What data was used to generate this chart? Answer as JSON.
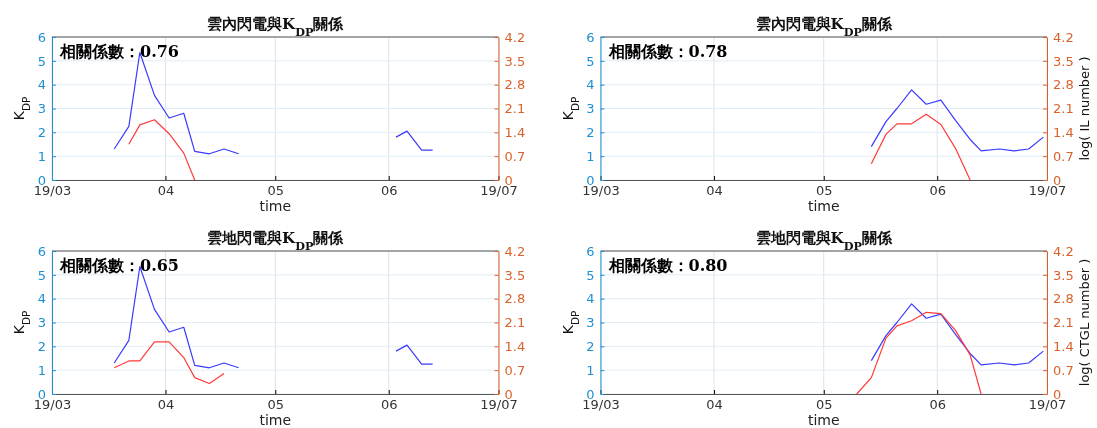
{
  "chart_data": [
    {
      "type": "line",
      "title": "雲內閃電與K$_{DP}$關係",
      "xlabel": "time",
      "ylabel": "K$_{DP}$",
      "annotations": [
        "相關係數：0.76"
      ],
      "grid": true,
      "xlim": [
        "--03-01",
        "--07-01"
      ],
      "xticks": [
        {
          "value": "--03-01",
          "label": "19/03"
        },
        {
          "value": "--04-01",
          "label": "04"
        },
        {
          "value": "--05-01",
          "label": "05"
        },
        {
          "value": "--06-01",
          "label": "06"
        },
        {
          "value": "--07-01",
          "label": "19/07"
        }
      ],
      "ylim": [
        0,
        6
      ],
      "yticks": [
        0,
        1,
        2,
        3,
        4,
        5,
        6
      ],
      "y2lim": [
        0,
        4.2
      ],
      "y2ticks": [
        0,
        0.7,
        1.4,
        2.1,
        2.8,
        3.5,
        4.2
      ],
      "series": [
        {
          "color": "#3a3aff",
          "x": [
            "--03-18",
            "--03-22",
            "--03-25",
            "--03-29",
            "--04-02",
            "--04-06",
            "--04-09",
            "--04-13",
            "--04-17",
            "--04-21",
            "--05-15",
            "--06-03",
            "--06-06",
            "--06-10",
            "--06-13"
          ],
          "values": [
            1.3,
            2.25,
            5.35,
            3.55,
            2.6,
            2.8,
            1.2,
            1.1,
            1.3,
            1.1,
            null,
            1.8,
            2.05,
            1.25,
            1.25
          ]
        },
        {
          "color": "#ff3a3a",
          "axis": "y2",
          "x": [
            "--03-22",
            "--03-25",
            "--03-29",
            "--04-02",
            "--04-06",
            "--04-09"
          ],
          "values": [
            1.05,
            1.62,
            1.77,
            1.36,
            0.79,
            0
          ]
        }
      ]
    },
    {
      "type": "line",
      "title": "雲內閃電與K$_{DP}$關係",
      "xlabel": "time",
      "ylabel": "K$_{DP}$",
      "y2label": "log( IL number )",
      "annotations": [
        "相關係數：0.78"
      ],
      "grid": true,
      "xlim": [
        "--03-01",
        "--07-01"
      ],
      "xticks": [
        {
          "value": "--03-01",
          "label": "19/03"
        },
        {
          "value": "--04-01",
          "label": "04"
        },
        {
          "value": "--05-01",
          "label": "05"
        },
        {
          "value": "--06-01",
          "label": "06"
        },
        {
          "value": "--07-01",
          "label": "19/07"
        }
      ],
      "ylim": [
        0,
        6
      ],
      "yticks": [
        0,
        1,
        2,
        3,
        4,
        5,
        6
      ],
      "y2lim": [
        0,
        4.2
      ],
      "y2ticks": [
        0,
        0.7,
        1.4,
        2.1,
        2.8,
        3.5,
        4.2
      ],
      "series": [
        {
          "color": "#3a3aff",
          "x": [
            "--05-14",
            "--05-18",
            "--05-21",
            "--05-25",
            "--05-29",
            "--06-02",
            "--06-06",
            "--06-10",
            "--06-13",
            "--06-18",
            "--06-22",
            "--06-26",
            "--06-30"
          ],
          "values": [
            1.4,
            2.45,
            3.0,
            3.78,
            3.18,
            3.35,
            2.5,
            1.7,
            1.22,
            1.3,
            1.22,
            1.3,
            1.8
          ]
        },
        {
          "color": "#ff3a3a",
          "axis": "y2",
          "x": [
            "--05-14",
            "--05-18",
            "--05-21",
            "--05-25",
            "--05-29",
            "--06-02",
            "--06-06",
            "--06-10"
          ],
          "values": [
            0.48,
            1.34,
            1.65,
            1.65,
            1.93,
            1.63,
            0.93,
            0
          ]
        }
      ]
    },
    {
      "type": "line",
      "title": "雲地閃電與K$_{DP}$關係",
      "xlabel": "time",
      "ylabel": "K$_{DP}$",
      "annotations": [
        "相關係數：0.65"
      ],
      "grid": true,
      "xlim": [
        "--03-01",
        "--07-01"
      ],
      "xticks": [
        {
          "value": "--03-01",
          "label": "19/03"
        },
        {
          "value": "--04-01",
          "label": "04"
        },
        {
          "value": "--05-01",
          "label": "05"
        },
        {
          "value": "--06-01",
          "label": "06"
        },
        {
          "value": "--07-01",
          "label": "19/07"
        }
      ],
      "ylim": [
        0,
        6
      ],
      "yticks": [
        0,
        1,
        2,
        3,
        4,
        5,
        6
      ],
      "y2lim": [
        0,
        4.2
      ],
      "y2ticks": [
        0,
        0.7,
        1.4,
        2.1,
        2.8,
        3.5,
        4.2
      ],
      "series": [
        {
          "color": "#3a3aff",
          "x": [
            "--03-18",
            "--03-22",
            "--03-25",
            "--03-29",
            "--04-02",
            "--04-06",
            "--04-09",
            "--04-13",
            "--04-17",
            "--04-21",
            "--05-15",
            "--06-03",
            "--06-06",
            "--06-10",
            "--06-13"
          ],
          "values": [
            1.3,
            2.25,
            5.35,
            3.55,
            2.6,
            2.8,
            1.2,
            1.1,
            1.3,
            1.1,
            null,
            1.8,
            2.05,
            1.25,
            1.25
          ]
        },
        {
          "color": "#ff3a3a",
          "axis": "y2",
          "x": [
            "--03-18",
            "--03-22",
            "--03-25",
            "--03-29",
            "--04-02",
            "--04-06",
            "--04-09",
            "--04-13",
            "--04-17"
          ],
          "values": [
            0.77,
            0.97,
            0.97,
            1.53,
            1.53,
            1.07,
            0.48,
            0.31,
            0.6
          ]
        }
      ]
    },
    {
      "type": "line",
      "title": "雲地閃電與K$_{DP}$關係",
      "xlabel": "time",
      "ylabel": "K$_{DP}$",
      "y2label": "log( CTGL number )",
      "annotations": [
        "相關係數：0.80"
      ],
      "grid": true,
      "xlim": [
        "--03-01",
        "--07-01"
      ],
      "xticks": [
        {
          "value": "--03-01",
          "label": "19/03"
        },
        {
          "value": "--04-01",
          "label": "04"
        },
        {
          "value": "--05-01",
          "label": "05"
        },
        {
          "value": "--06-01",
          "label": "06"
        },
        {
          "value": "--07-01",
          "label": "19/07"
        }
      ],
      "ylim": [
        0,
        6
      ],
      "yticks": [
        0,
        1,
        2,
        3,
        4,
        5,
        6
      ],
      "y2lim": [
        0,
        4.2
      ],
      "y2ticks": [
        0,
        0.7,
        1.4,
        2.1,
        2.8,
        3.5,
        4.2
      ],
      "series": [
        {
          "color": "#3a3aff",
          "x": [
            "--05-14",
            "--05-18",
            "--05-21",
            "--05-25",
            "--05-29",
            "--06-02",
            "--06-06",
            "--06-10",
            "--06-13",
            "--06-18",
            "--06-22",
            "--06-26",
            "--06-30"
          ],
          "values": [
            1.4,
            2.45,
            3.0,
            3.78,
            3.18,
            3.35,
            2.5,
            1.7,
            1.22,
            1.3,
            1.22,
            1.3,
            1.8
          ]
        },
        {
          "color": "#ff3a3a",
          "axis": "y2",
          "x": [
            "--05-10",
            "--05-14",
            "--05-18",
            "--05-21",
            "--05-25",
            "--05-29",
            "--06-02",
            "--06-06",
            "--06-10",
            "--06-13"
          ],
          "values": [
            0,
            0.48,
            1.64,
            2.0,
            2.15,
            2.4,
            2.36,
            1.87,
            1.15,
            0
          ]
        }
      ]
    }
  ]
}
